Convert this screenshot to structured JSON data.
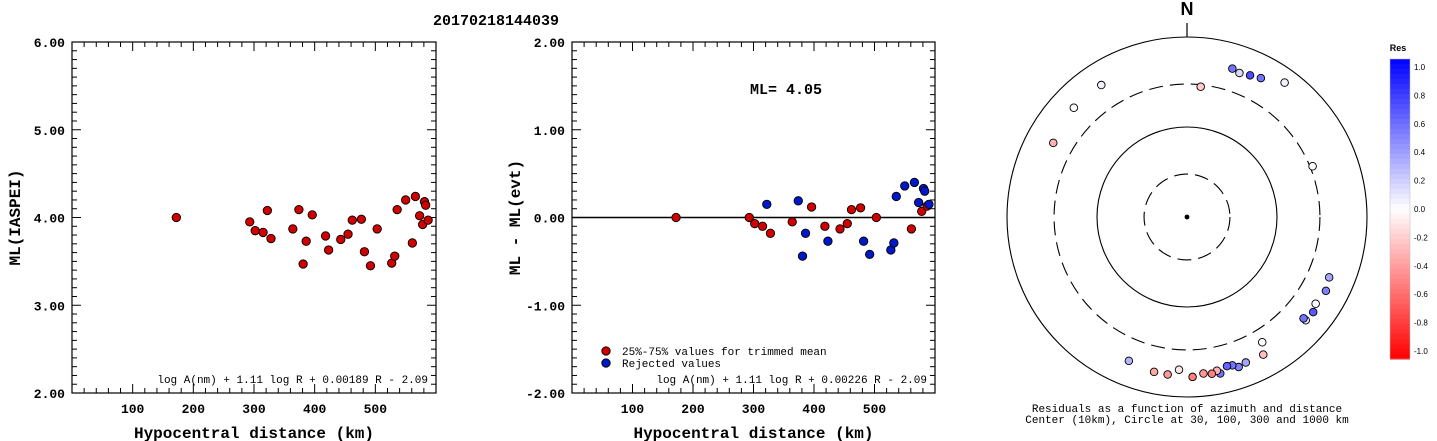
{
  "title": "20170218144039",
  "chart_data": [
    {
      "type": "scatter",
      "ylabel": "ML(IASPEI)",
      "xlabel": "Hypocentral distance (km)",
      "xlim": [
        0,
        600
      ],
      "ylim": [
        2.0,
        6.0
      ],
      "x_ticks": [
        "100",
        "200",
        "300",
        "400",
        "500"
      ],
      "y_ticks": [
        "6.00",
        "5.00",
        "4.00",
        "3.00",
        "2.00"
      ],
      "formula": "log A(nm) + 1.11 log R + 0.00189 R - 2.09",
      "series": [
        {
          "color": "#d10000",
          "points": [
            [
              172,
              4.0
            ],
            [
              293,
              3.95
            ],
            [
              302,
              3.85
            ],
            [
              315,
              3.83
            ],
            [
              322,
              4.08
            ],
            [
              328,
              3.76
            ],
            [
              364,
              3.87
            ],
            [
              374,
              4.09
            ],
            [
              381,
              3.47
            ],
            [
              386,
              3.73
            ],
            [
              396,
              4.03
            ],
            [
              418,
              3.79
            ],
            [
              423,
              3.63
            ],
            [
              443,
              3.75
            ],
            [
              455,
              3.81
            ],
            [
              462,
              3.97
            ],
            [
              477,
              3.98
            ],
            [
              482,
              3.61
            ],
            [
              492,
              3.45
            ],
            [
              503,
              3.87
            ],
            [
              527,
              3.48
            ],
            [
              532,
              3.56
            ],
            [
              536,
              4.09
            ],
            [
              550,
              4.2
            ],
            [
              561,
              3.71
            ],
            [
              566,
              4.24
            ],
            [
              573,
              4.02
            ],
            [
              578,
              3.92
            ],
            [
              581,
              4.18
            ],
            [
              583,
              4.14
            ],
            [
              587,
              3.97
            ]
          ]
        }
      ]
    },
    {
      "type": "scatter",
      "ylabel": "ML - ML(evt)",
      "xlabel": "Hypocentral distance (km)",
      "xlim": [
        0,
        600
      ],
      "ylim": [
        -2.0,
        2.0
      ],
      "x_ticks": [
        "100",
        "200",
        "300",
        "400",
        "500"
      ],
      "y_ticks": [
        "2.00",
        "1.00",
        "0.00",
        "-1.00",
        "-2.00"
      ],
      "annotation": "ML=  4.05",
      "formula": "log A(nm) + 1.11 log R + 0.00226 R - 2.09",
      "legend": [
        "25%-75% values for trimmed mean",
        "Rejected values"
      ],
      "series": [
        {
          "name": "25%-75% values for trimmed mean",
          "color": "#d10000",
          "points": [
            [
              172,
              0.0
            ],
            [
              293,
              0.0
            ],
            [
              302,
              -0.07
            ],
            [
              315,
              -0.1
            ],
            [
              328,
              -0.18
            ],
            [
              364,
              -0.05
            ],
            [
              396,
              0.12
            ],
            [
              418,
              -0.1
            ],
            [
              443,
              -0.13
            ],
            [
              455,
              -0.07
            ],
            [
              462,
              0.09
            ],
            [
              477,
              0.11
            ],
            [
              503,
              0.0
            ],
            [
              561,
              -0.13
            ],
            [
              578,
              0.07
            ],
            [
              587,
              0.13
            ]
          ]
        },
        {
          "name": "Rejected values",
          "color": "#0018c8",
          "points": [
            [
              322,
              0.15
            ],
            [
              374,
              0.19
            ],
            [
              381,
              -0.44
            ],
            [
              386,
              -0.18
            ],
            [
              423,
              -0.27
            ],
            [
              482,
              -0.27
            ],
            [
              492,
              -0.42
            ],
            [
              527,
              -0.37
            ],
            [
              532,
              -0.29
            ],
            [
              536,
              0.24
            ],
            [
              550,
              0.36
            ],
            [
              566,
              0.4
            ],
            [
              573,
              0.17
            ],
            [
              581,
              0.33
            ],
            [
              583,
              0.3
            ],
            [
              590,
              0.15
            ]
          ]
        }
      ]
    },
    {
      "type": "scatter",
      "subtype": "polar-residuals",
      "north_label": "N",
      "caption": [
        "Residuals as a function of azimuth and distance",
        "Center (10km), Circle at 30, 100, 300 and 1000 km"
      ],
      "rings_km": [
        30,
        100,
        300,
        1000
      ],
      "ring_styles": [
        "dashed",
        "solid",
        "dashed",
        "solid"
      ],
      "points_az_km_res": [
        [
          6,
          285,
          -0.2
        ],
        [
          17,
          530,
          0.55
        ],
        [
          20,
          505,
          0.15
        ],
        [
          24,
          528,
          0.7
        ],
        [
          28,
          560,
          0.55
        ],
        [
          36,
          700,
          0.05
        ],
        [
          68,
          320,
          0.0
        ],
        [
          113,
          520,
          0.35
        ],
        [
          118,
          560,
          0.5
        ],
        [
          124,
          530,
          0.0
        ],
        [
          127,
          570,
          0.65
        ],
        [
          131,
          560,
          0.1
        ],
        [
          131,
          520,
          0.55
        ],
        [
          149,
          420,
          0.0
        ],
        [
          151,
          560,
          -0.25
        ],
        [
          158,
          555,
          0.35
        ],
        [
          161,
          580,
          0.5
        ],
        [
          163,
          530,
          0.55
        ],
        [
          165,
          520,
          0.6
        ],
        [
          168,
          600,
          0.55
        ],
        [
          169,
          550,
          -0.3
        ],
        [
          171,
          580,
          -0.5
        ],
        [
          174,
          560,
          -0.4
        ],
        [
          178,
          600,
          -0.5
        ],
        [
          183,
          500,
          -0.1
        ],
        [
          187,
          580,
          -0.4
        ],
        [
          192,
          575,
          -0.35
        ],
        [
          202,
          530,
          0.3
        ],
        [
          299,
          500,
          -0.3
        ],
        [
          314,
          560,
          0.0
        ],
        [
          327,
          560,
          0.05
        ]
      ],
      "colorbar_title": "Res",
      "colorbar_ticks": [
        "1.0",
        "0.8",
        "0.6",
        "0.4",
        "0.2",
        "0.0",
        "-0.2",
        "-0.4",
        "-0.6",
        "-0.8",
        "-1.0"
      ],
      "scale_colors": {
        "negative": "#ff0000",
        "zero": "#ffffff",
        "positive": "#0000ff"
      }
    }
  ]
}
